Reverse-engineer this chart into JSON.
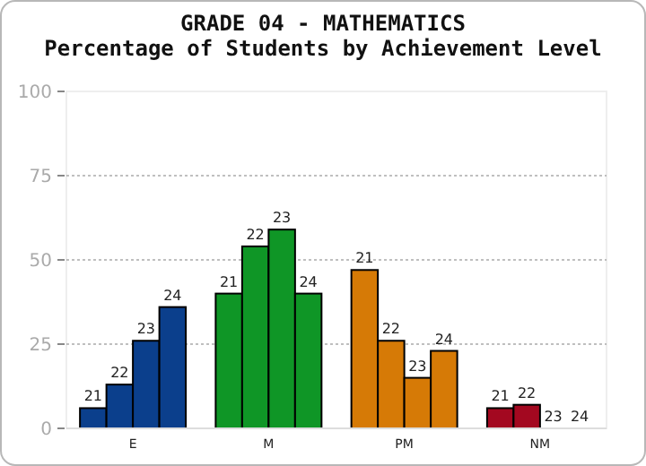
{
  "chart_data": {
    "type": "bar",
    "title": "GRADE 04 - MATHEMATICS",
    "subtitle": "Percentage of Students by Achievement Level",
    "categories": [
      "E",
      "M",
      "PM",
      "NM"
    ],
    "series": [
      {
        "name": "21",
        "colors": [
          "#0b3f8c",
          "#0f9626",
          "#d67a06",
          "#a30820"
        ],
        "values": [
          6,
          40,
          47,
          6
        ]
      },
      {
        "name": "22",
        "colors": [
          "#0b3f8c",
          "#0f9626",
          "#d67a06",
          "#a30820"
        ],
        "values": [
          13,
          54,
          26,
          7
        ]
      },
      {
        "name": "23",
        "colors": [
          "#0b3f8c",
          "#0f9626",
          "#d67a06",
          "#a30820"
        ],
        "values": [
          26,
          59,
          15,
          0
        ]
      },
      {
        "name": "24",
        "colors": [
          "#0b3f8c",
          "#0f9626",
          "#d67a06",
          "#a30820"
        ],
        "values": [
          36,
          40,
          23,
          0
        ]
      }
    ],
    "ylim": [
      0,
      100
    ],
    "yticks": [
      0,
      25,
      50,
      75,
      100
    ],
    "grid": "y"
  }
}
